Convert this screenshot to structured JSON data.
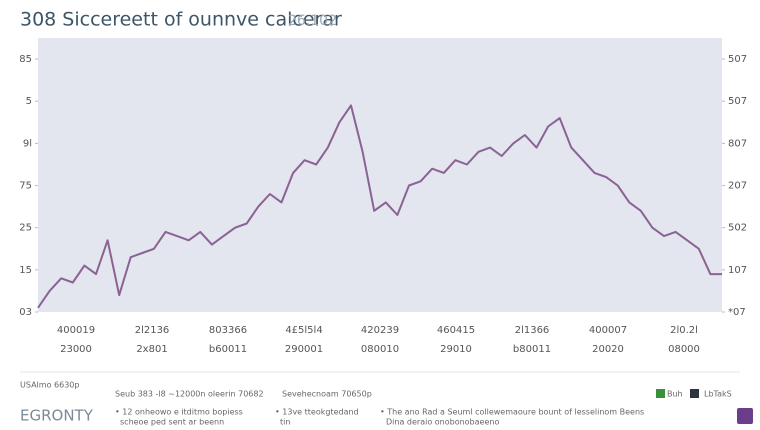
{
  "chart_data": {
    "type": "line",
    "title": "308 Siccereett of ounnve calcerar",
    "title_suffix": "26.102",
    "background": "#e3e5ef",
    "ylim": [
      0,
      6.5
    ],
    "yticks": [
      {
        "value": 0,
        "label": "03"
      },
      {
        "value": 1,
        "label": "15"
      },
      {
        "value": 2,
        "label": "25"
      },
      {
        "value": 3,
        "label": "75"
      },
      {
        "value": 4,
        "label": "9l"
      },
      {
        "value": 5,
        "label": "5"
      },
      {
        "value": 6,
        "label": "85"
      }
    ],
    "y2lim": [
      0,
      6.5
    ],
    "y2ticks": [
      {
        "value": 0,
        "label": "*07"
      },
      {
        "value": 1,
        "label": "107"
      },
      {
        "value": 2,
        "label": "502"
      },
      {
        "value": 3,
        "label": "207"
      },
      {
        "value": 4,
        "label": "807"
      },
      {
        "value": 5,
        "label": "507"
      },
      {
        "value": 6,
        "label": "507"
      }
    ],
    "x_tick_labels": [
      [
        "400019",
        "23000"
      ],
      [
        "2l2136",
        "2x801"
      ],
      [
        "803366",
        "b60011"
      ],
      [
        "4£5l5l4",
        "290001"
      ],
      [
        "420239",
        "080010"
      ],
      [
        "460415",
        "29010"
      ],
      [
        "2l1366",
        "b80011"
      ],
      [
        "400007",
        "20020"
      ],
      [
        "2l0.2l",
        "08000"
      ]
    ],
    "series": [
      {
        "color": "#8a6294",
        "values": [
          0.1,
          0.5,
          0.8,
          0.7,
          1.1,
          0.9,
          1.7,
          0.4,
          1.3,
          1.4,
          1.5,
          1.9,
          1.8,
          1.7,
          1.9,
          1.6,
          1.8,
          2.0,
          2.1,
          2.5,
          2.8,
          2.6,
          3.3,
          3.6,
          3.5,
          3.9,
          4.5,
          4.9,
          3.8,
          2.4,
          2.6,
          2.3,
          3.0,
          3.1,
          3.4,
          3.3,
          3.6,
          3.5,
          3.8,
          3.9,
          3.7,
          4.0,
          4.2,
          3.9,
          4.4,
          4.6,
          3.9,
          3.6,
          3.3,
          3.2,
          3.0,
          2.6,
          2.4,
          2.0,
          1.8,
          1.9,
          1.7,
          1.5,
          0.9,
          0.9
        ]
      }
    ]
  },
  "footer": {
    "source": "USAlmo 6630p",
    "note_a": "Seub 383 -l8 ~12000n oleerin 70682",
    "note_b": "Sevehecnoam 70650p",
    "badge": "Buh",
    "badge_b": "LbTakS",
    "brand": "EGRONTY",
    "bullets": [
      [
        "• 12 onheowo e itditmo bopiess",
        "scheoe ped sent ar beenn"
      ],
      [
        "• 13ve tteokgtedand",
        "tin"
      ],
      [
        "• The ano Rad a Seuml collewemaoure bount of lesselinom Beens",
        "Dina deraio onobonobaeeno"
      ]
    ]
  }
}
